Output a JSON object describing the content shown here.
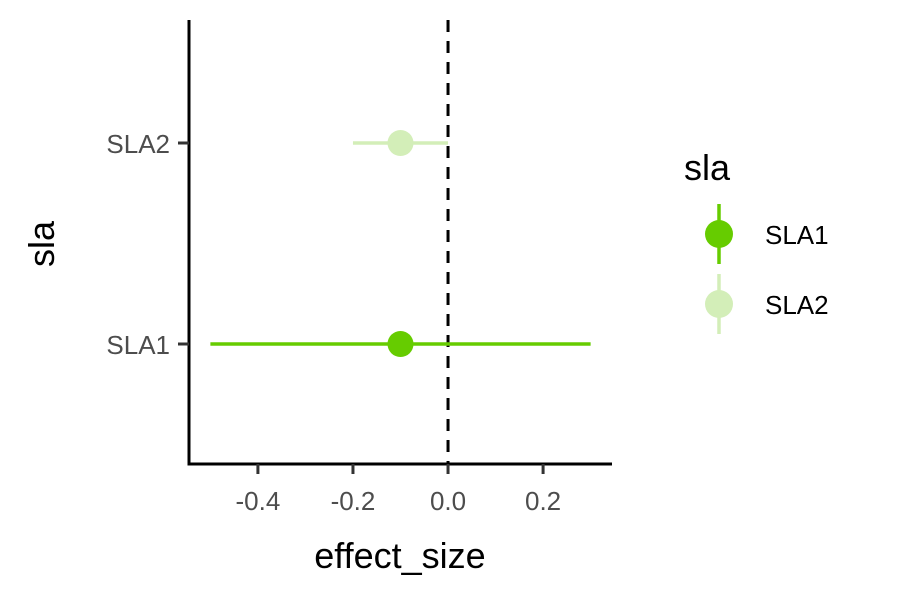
{
  "chart_data": {
    "type": "scatter",
    "xlabel": "effect_size",
    "ylabel": "sla",
    "categories": [
      "SLA1",
      "SLA2"
    ],
    "xlim": [
      -0.545,
      0.345
    ],
    "xticks": [
      -0.4,
      -0.2,
      0.0,
      0.2
    ],
    "xtick_labels": [
      "-0.4",
      "-0.2",
      "0.0",
      "0.2"
    ],
    "reference_line": {
      "x": 0.0,
      "style": "dashed"
    },
    "grid": false,
    "legend": {
      "title": "sla",
      "position": "right"
    },
    "series": [
      {
        "name": "SLA1",
        "category": "SLA1",
        "estimate": -0.1,
        "lower": -0.5,
        "upper": 0.3,
        "color": "#66cc00"
      },
      {
        "name": "SLA2",
        "category": "SLA2",
        "estimate": -0.1,
        "lower": -0.2,
        "upper": 0.0,
        "color": "#d3eeb8"
      }
    ]
  }
}
